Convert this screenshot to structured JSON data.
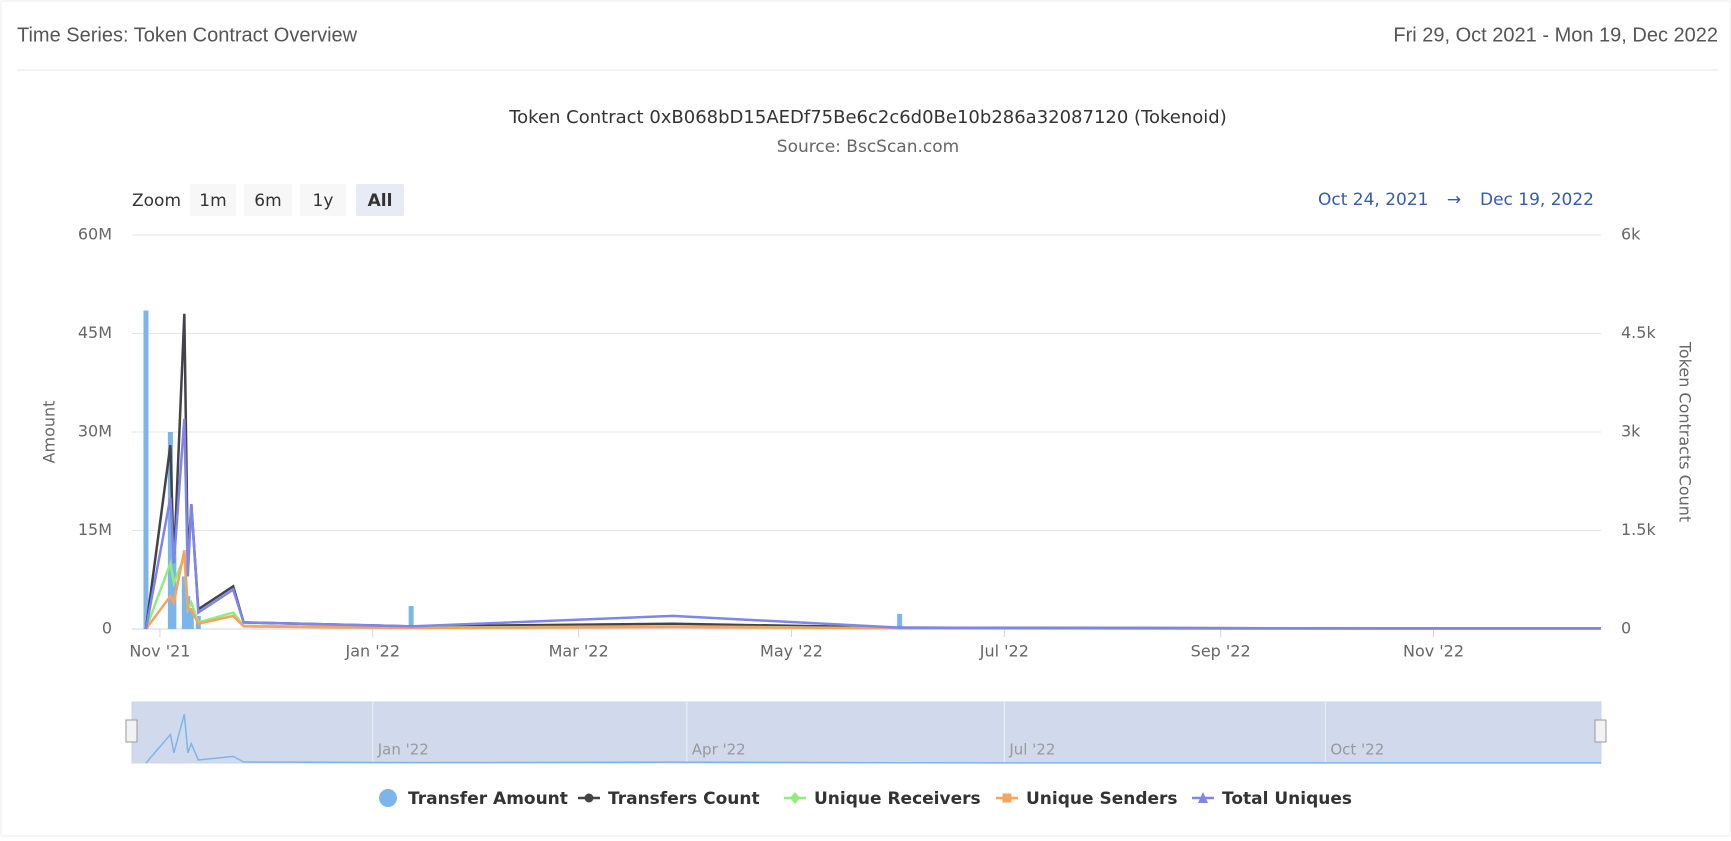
{
  "header": {
    "title": "Time Series: Token Contract Overview",
    "date_range": "Fri 29, Oct 2021 - Mon 19, Dec 2022"
  },
  "range_selector": {
    "label": "Zoom",
    "buttons": [
      "1m",
      "6m",
      "1y",
      "All"
    ],
    "from": "Oct 24, 2021",
    "arrow": "→",
    "to": "Dec 19, 2022"
  },
  "chart_data": {
    "type": "combo",
    "title": "Token Contract 0xB068bD15AEDf75Be6c2c6d0Be10b286a32087120 (Tokenoid)",
    "subtitle": "Source: BscScan.com",
    "y_label": "Amount",
    "y2_label": "Token Contracts Count",
    "x": [
      "2021-10-28",
      "2021-11-04",
      "2021-11-05",
      "2021-11-08",
      "2021-11-09",
      "2021-11-10",
      "2021-11-12",
      "2021-11-22",
      "2021-11-25",
      "2022-01-12",
      "2022-03-28",
      "2022-06-01",
      "2022-10-15",
      "2022-12-19"
    ],
    "xlim": [
      "2021-10-24",
      "2022-12-19"
    ],
    "xticks": [
      {
        "value": "2021-11-01",
        "label": "Nov '21"
      },
      {
        "value": "2022-01-01",
        "label": "Jan '22"
      },
      {
        "value": "2022-03-01",
        "label": "Mar '22"
      },
      {
        "value": "2022-05-01",
        "label": "May '22"
      },
      {
        "value": "2022-07-01",
        "label": "Jul '22"
      },
      {
        "value": "2022-09-01",
        "label": "Sep '22"
      },
      {
        "value": "2022-11-01",
        "label": "Nov '22"
      }
    ],
    "navigator_ticks": [
      {
        "value": "2022-01-01",
        "label": "Jan '22"
      },
      {
        "value": "2022-04-01",
        "label": "Apr '22"
      },
      {
        "value": "2022-07-01",
        "label": "Jul '22"
      },
      {
        "value": "2022-10-01",
        "label": "Oct '22"
      }
    ],
    "ylim": [
      0,
      60000000
    ],
    "yticks": [
      0,
      {
        "value": 15000000,
        "label": "15M"
      },
      {
        "value": 30000000,
        "label": "30M"
      },
      {
        "value": 45000000,
        "label": "45M"
      },
      {
        "value": 60000000,
        "label": "60M"
      }
    ],
    "y2lim": [
      0,
      6000
    ],
    "y2ticks": [
      0,
      {
        "value": 1500,
        "label": "1.5k"
      },
      {
        "value": 3000,
        "label": "3k"
      },
      {
        "value": 4500,
        "label": "4.5k"
      },
      {
        "value": 6000,
        "label": "6k"
      }
    ],
    "grid": true,
    "series": [
      {
        "name": "Transfer Amount",
        "type": "bar",
        "color": "#7cb5ec",
        "values": [
          48500000,
          30000000,
          12000000,
          8000000,
          5000000,
          3000000,
          2000000,
          null,
          null,
          3500000,
          null,
          2300000,
          null,
          null
        ]
      },
      {
        "name": "Transfers Count",
        "type": "line",
        "axis": "y2",
        "marker": "circle",
        "color": "#434348",
        "values": [
          0,
          2800,
          1000,
          4800,
          1000,
          1900,
          300,
          650,
          100,
          40,
          80,
          20,
          10,
          10
        ]
      },
      {
        "name": "Unique Receivers",
        "type": "line",
        "axis": "y2",
        "marker": "diamond",
        "color": "#90ed7d",
        "values": [
          0,
          1000,
          700,
          1100,
          300,
          400,
          100,
          250,
          50,
          20,
          40,
          10,
          5,
          5
        ]
      },
      {
        "name": "Unique Senders",
        "type": "line",
        "axis": "y2",
        "marker": "square",
        "color": "#f7a35c",
        "values": [
          0,
          500,
          400,
          1200,
          300,
          300,
          80,
          200,
          40,
          15,
          30,
          10,
          5,
          5
        ]
      },
      {
        "name": "Total Uniques",
        "type": "line",
        "axis": "y2",
        "marker": "triangle",
        "color": "#8085e9",
        "values": [
          0,
          2000,
          1000,
          3200,
          800,
          1900,
          250,
          600,
          100,
          40,
          200,
          20,
          10,
          10
        ]
      }
    ]
  }
}
